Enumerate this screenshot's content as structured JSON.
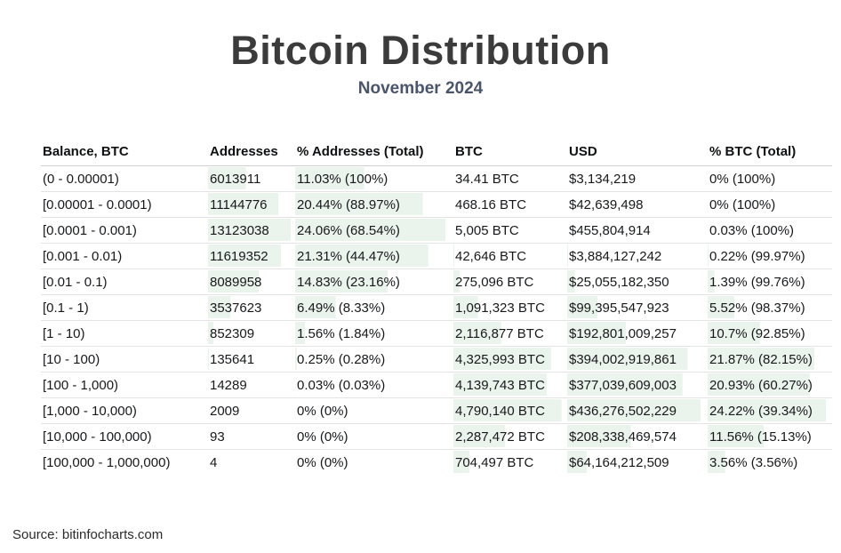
{
  "header": {
    "title": "Bitcoin Distribution",
    "subtitle": "November 2024"
  },
  "colors": {
    "bar": "#eaf3ec",
    "title": "#3b3b3b",
    "subtitle": "#4a5569"
  },
  "footer": {
    "source": "Source: bitinfocharts.com"
  },
  "table": {
    "columns": [
      "Balance, BTC",
      "Addresses",
      "% Addresses (Total)",
      "BTC",
      "USD",
      "% BTC (Total)"
    ],
    "column_slugs": [
      "balance-btc",
      "addresses",
      "pct-addresses-total",
      "btc",
      "usd",
      "pct-btc-total"
    ],
    "rows": [
      [
        "(0 - 0.00001)",
        "6013911",
        "11.03% (100%)",
        "34.41 BTC",
        "$3,134,219",
        "0% (100%)"
      ],
      [
        "[0.00001 - 0.0001)",
        "11144776",
        "20.44% (88.97%)",
        "468.16 BTC",
        "$42,639,498",
        "0% (100%)"
      ],
      [
        "[0.0001 - 0.001)",
        "13123038",
        "24.06% (68.54%)",
        "5,005 BTC",
        "$455,804,914",
        "0.03% (100%)"
      ],
      [
        "[0.001 - 0.01)",
        "11619352",
        "21.31% (44.47%)",
        "42,646 BTC",
        "$3,884,127,242",
        "0.22% (99.97%)"
      ],
      [
        "[0.01 - 0.1)",
        "8089958",
        "14.83% (23.16%)",
        "275,096 BTC",
        "$25,055,182,350",
        "1.39% (99.76%)"
      ],
      [
        "[0.1 - 1)",
        "3537623",
        "6.49% (8.33%)",
        "1,091,323 BTC",
        "$99,395,547,923",
        "5.52% (98.37%)"
      ],
      [
        "[1 - 10)",
        "852309",
        "1.56% (1.84%)",
        "2,116,877 BTC",
        "$192,801,009,257",
        "10.7% (92.85%)"
      ],
      [
        "[10 - 100)",
        "135641",
        "0.25% (0.28%)",
        "4,325,993 BTC",
        "$394,002,919,861",
        "21.87% (82.15%)"
      ],
      [
        "[100 - 1,000)",
        "14289",
        "0.03% (0.03%)",
        "4,139,743 BTC",
        "$377,039,609,003",
        "20.93% (60.27%)"
      ],
      [
        "[1,000 - 10,000)",
        "2009",
        "0% (0%)",
        "4,790,140 BTC",
        "$436,276,502,229",
        "24.22% (39.34%)"
      ],
      [
        "[10,000 - 100,000)",
        "93",
        "0% (0%)",
        "2,287,472 BTC",
        "$208,338,469,574",
        "11.56% (15.13%)"
      ],
      [
        "[100,000 - 1,000,000)",
        "4",
        "0% (0%)",
        "704,497 BTC",
        "$64,164,212,509",
        "3.56% (3.56%)"
      ]
    ]
  },
  "chart_data": {
    "type": "table",
    "title": "Bitcoin Distribution",
    "subtitle": "November 2024",
    "source": "Source: bitinfocharts.com",
    "columns": [
      "Balance, BTC",
      "Addresses",
      "% Addresses (Total)",
      "BTC",
      "USD",
      "% BTC (Total)"
    ],
    "rows": [
      {
        "balance_btc": "(0 - 0.00001)",
        "addresses": 6013911,
        "pct_addresses": 11.03,
        "pct_addresses_total": 100,
        "btc": 34.41,
        "usd": 3134219,
        "pct_btc": 0,
        "pct_btc_total": 100
      },
      {
        "balance_btc": "[0.00001 - 0.0001)",
        "addresses": 11144776,
        "pct_addresses": 20.44,
        "pct_addresses_total": 88.97,
        "btc": 468.16,
        "usd": 42639498,
        "pct_btc": 0,
        "pct_btc_total": 100
      },
      {
        "balance_btc": "[0.0001 - 0.001)",
        "addresses": 13123038,
        "pct_addresses": 24.06,
        "pct_addresses_total": 68.54,
        "btc": 5005,
        "usd": 455804914,
        "pct_btc": 0.03,
        "pct_btc_total": 100
      },
      {
        "balance_btc": "[0.001 - 0.01)",
        "addresses": 11619352,
        "pct_addresses": 21.31,
        "pct_addresses_total": 44.47,
        "btc": 42646,
        "usd": 3884127242,
        "pct_btc": 0.22,
        "pct_btc_total": 99.97
      },
      {
        "balance_btc": "[0.01 - 0.1)",
        "addresses": 8089958,
        "pct_addresses": 14.83,
        "pct_addresses_total": 23.16,
        "btc": 275096,
        "usd": 25055182350,
        "pct_btc": 1.39,
        "pct_btc_total": 99.76
      },
      {
        "balance_btc": "[0.1 - 1)",
        "addresses": 3537623,
        "pct_addresses": 6.49,
        "pct_addresses_total": 8.33,
        "btc": 1091323,
        "usd": 99395547923,
        "pct_btc": 5.52,
        "pct_btc_total": 98.37
      },
      {
        "balance_btc": "[1 - 10)",
        "addresses": 852309,
        "pct_addresses": 1.56,
        "pct_addresses_total": 1.84,
        "btc": 2116877,
        "usd": 192801009257,
        "pct_btc": 10.7,
        "pct_btc_total": 92.85
      },
      {
        "balance_btc": "[10 - 100)",
        "addresses": 135641,
        "pct_addresses": 0.25,
        "pct_addresses_total": 0.28,
        "btc": 4325993,
        "usd": 394002919861,
        "pct_btc": 21.87,
        "pct_btc_total": 82.15
      },
      {
        "balance_btc": "[100 - 1,000)",
        "addresses": 14289,
        "pct_addresses": 0.03,
        "pct_addresses_total": 0.03,
        "btc": 4139743,
        "usd": 377039609003,
        "pct_btc": 20.93,
        "pct_btc_total": 60.27
      },
      {
        "balance_btc": "[1,000 - 10,000)",
        "addresses": 2009,
        "pct_addresses": 0,
        "pct_addresses_total": 0,
        "btc": 4790140,
        "usd": 436276502229,
        "pct_btc": 24.22,
        "pct_btc_total": 39.34
      },
      {
        "balance_btc": "[10,000 - 100,000)",
        "addresses": 93,
        "pct_addresses": 0,
        "pct_addresses_total": 0,
        "btc": 2287472,
        "usd": 208338469574,
        "pct_btc": 11.56,
        "pct_btc_total": 15.13
      },
      {
        "balance_btc": "[100,000 - 1,000,000)",
        "addresses": 4,
        "pct_addresses": 0,
        "pct_addresses_total": 0,
        "btc": 704497,
        "usd": 64164212509,
        "pct_btc": 3.56,
        "pct_btc_total": 3.56
      }
    ],
    "layout_hints": {
      "data_bars": "light green proportional bars behind cells in columns 2-6, scaled to each column's max value",
      "bar_color": "#eaf3ec",
      "grid": "horizontal row separators only"
    }
  }
}
